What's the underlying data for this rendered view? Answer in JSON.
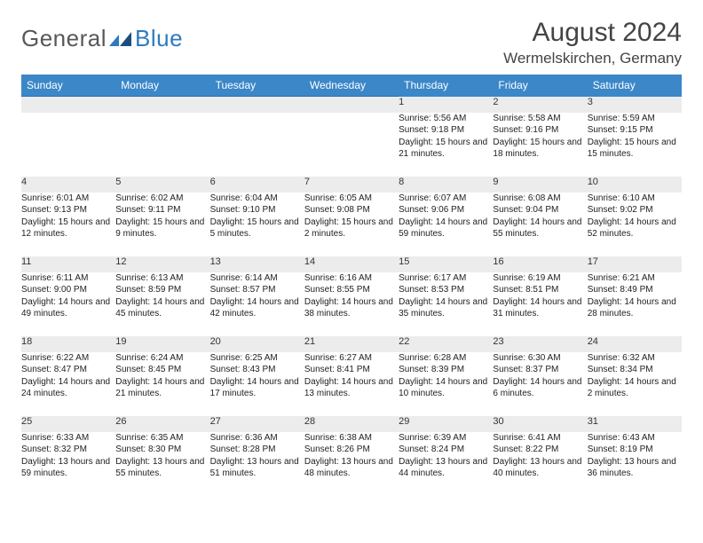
{
  "logo": {
    "text1": "General",
    "text2": "Blue"
  },
  "title": "August 2024",
  "location": "Wermelskirchen, Germany",
  "colors": {
    "header_bg": "#3b87c8",
    "header_text": "#ffffff",
    "row_border": "#2f6fa8",
    "daynum_bg": "#ececec",
    "logo_gray": "#585858",
    "logo_blue": "#2f7abf"
  },
  "day_headers": [
    "Sunday",
    "Monday",
    "Tuesday",
    "Wednesday",
    "Thursday",
    "Friday",
    "Saturday"
  ],
  "weeks": [
    {
      "nums": [
        "",
        "",
        "",
        "",
        "1",
        "2",
        "3"
      ],
      "details": [
        "",
        "",
        "",
        "",
        "Sunrise: 5:56 AM\nSunset: 9:18 PM\nDaylight: 15 hours and 21 minutes.",
        "Sunrise: 5:58 AM\nSunset: 9:16 PM\nDaylight: 15 hours and 18 minutes.",
        "Sunrise: 5:59 AM\nSunset: 9:15 PM\nDaylight: 15 hours and 15 minutes."
      ]
    },
    {
      "nums": [
        "4",
        "5",
        "6",
        "7",
        "8",
        "9",
        "10"
      ],
      "details": [
        "Sunrise: 6:01 AM\nSunset: 9:13 PM\nDaylight: 15 hours and 12 minutes.",
        "Sunrise: 6:02 AM\nSunset: 9:11 PM\nDaylight: 15 hours and 9 minutes.",
        "Sunrise: 6:04 AM\nSunset: 9:10 PM\nDaylight: 15 hours and 5 minutes.",
        "Sunrise: 6:05 AM\nSunset: 9:08 PM\nDaylight: 15 hours and 2 minutes.",
        "Sunrise: 6:07 AM\nSunset: 9:06 PM\nDaylight: 14 hours and 59 minutes.",
        "Sunrise: 6:08 AM\nSunset: 9:04 PM\nDaylight: 14 hours and 55 minutes.",
        "Sunrise: 6:10 AM\nSunset: 9:02 PM\nDaylight: 14 hours and 52 minutes."
      ]
    },
    {
      "nums": [
        "11",
        "12",
        "13",
        "14",
        "15",
        "16",
        "17"
      ],
      "details": [
        "Sunrise: 6:11 AM\nSunset: 9:00 PM\nDaylight: 14 hours and 49 minutes.",
        "Sunrise: 6:13 AM\nSunset: 8:59 PM\nDaylight: 14 hours and 45 minutes.",
        "Sunrise: 6:14 AM\nSunset: 8:57 PM\nDaylight: 14 hours and 42 minutes.",
        "Sunrise: 6:16 AM\nSunset: 8:55 PM\nDaylight: 14 hours and 38 minutes.",
        "Sunrise: 6:17 AM\nSunset: 8:53 PM\nDaylight: 14 hours and 35 minutes.",
        "Sunrise: 6:19 AM\nSunset: 8:51 PM\nDaylight: 14 hours and 31 minutes.",
        "Sunrise: 6:21 AM\nSunset: 8:49 PM\nDaylight: 14 hours and 28 minutes."
      ]
    },
    {
      "nums": [
        "18",
        "19",
        "20",
        "21",
        "22",
        "23",
        "24"
      ],
      "details": [
        "Sunrise: 6:22 AM\nSunset: 8:47 PM\nDaylight: 14 hours and 24 minutes.",
        "Sunrise: 6:24 AM\nSunset: 8:45 PM\nDaylight: 14 hours and 21 minutes.",
        "Sunrise: 6:25 AM\nSunset: 8:43 PM\nDaylight: 14 hours and 17 minutes.",
        "Sunrise: 6:27 AM\nSunset: 8:41 PM\nDaylight: 14 hours and 13 minutes.",
        "Sunrise: 6:28 AM\nSunset: 8:39 PM\nDaylight: 14 hours and 10 minutes.",
        "Sunrise: 6:30 AM\nSunset: 8:37 PM\nDaylight: 14 hours and 6 minutes.",
        "Sunrise: 6:32 AM\nSunset: 8:34 PM\nDaylight: 14 hours and 2 minutes."
      ]
    },
    {
      "nums": [
        "25",
        "26",
        "27",
        "28",
        "29",
        "30",
        "31"
      ],
      "details": [
        "Sunrise: 6:33 AM\nSunset: 8:32 PM\nDaylight: 13 hours and 59 minutes.",
        "Sunrise: 6:35 AM\nSunset: 8:30 PM\nDaylight: 13 hours and 55 minutes.",
        "Sunrise: 6:36 AM\nSunset: 8:28 PM\nDaylight: 13 hours and 51 minutes.",
        "Sunrise: 6:38 AM\nSunset: 8:26 PM\nDaylight: 13 hours and 48 minutes.",
        "Sunrise: 6:39 AM\nSunset: 8:24 PM\nDaylight: 13 hours and 44 minutes.",
        "Sunrise: 6:41 AM\nSunset: 8:22 PM\nDaylight: 13 hours and 40 minutes.",
        "Sunrise: 6:43 AM\nSunset: 8:19 PM\nDaylight: 13 hours and 36 minutes."
      ]
    }
  ]
}
